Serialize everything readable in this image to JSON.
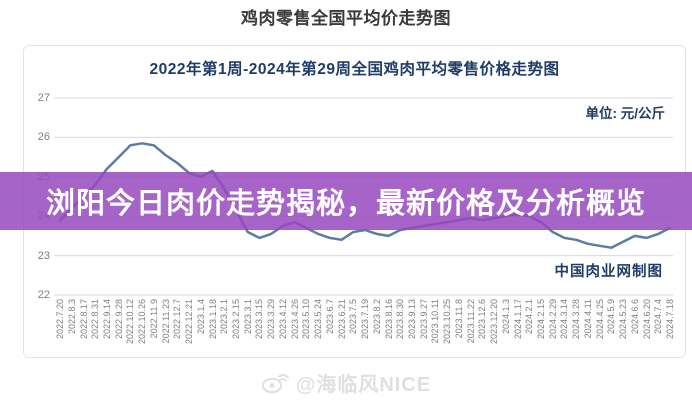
{
  "page": {
    "title": "鸡肉零售全国平均价走势图",
    "watermark": "@海临风NICE",
    "watermark_icon": "weibo-icon",
    "watermark_color": "#e0e0e0"
  },
  "overlay_banner": {
    "text": "浏阳今日肉价走势揭秘，最新价格及分析概览",
    "background_color": "#9648be",
    "text_color": "#ffffff"
  },
  "chart_card": {
    "title": "2022年第1周-2024年第29周全国鸡肉平均零售价格走势图",
    "unit_label": "单位: 元/公斤",
    "credit": "中国肉业网制图",
    "title_color": "#1e3d66"
  },
  "chart_data": {
    "type": "line",
    "title": "2022年第1周-2024年第29周全国鸡肉平均零售价格走势图",
    "ylabel": "元/公斤",
    "xlabel": "",
    "ylim": [
      22,
      27
    ],
    "yticks": [
      27,
      26,
      25,
      24,
      23,
      22
    ],
    "grid": true,
    "legend": "none",
    "line_color": "#5a7da4",
    "grid_color": "#d9d9d9",
    "tick_color": "#7e7e7e",
    "x": [
      "2022.7.20",
      "2022.8.3",
      "2022.8.17",
      "2022.8.31",
      "2022.9.14",
      "2022.9.28",
      "2022.10.12",
      "2022.10.26",
      "2022.11.9",
      "2022.11.23",
      "2022.12.7",
      "2022.12.21",
      "2023.1.4",
      "2023.1.18",
      "2023.2.1",
      "2023.2.15",
      "2023.3.1",
      "2023.3.15",
      "2023.3.29",
      "2023.4.12",
      "2023.4.26",
      "2023.5.10",
      "2023.5.24",
      "2023.6.7",
      "2023.6.21",
      "2023.7.5",
      "2023.7.19",
      "2023.8.2",
      "2023.8.16",
      "2023.8.30",
      "2023.9.13",
      "2023.9.27",
      "2023.10.11",
      "2023.10.25",
      "2023.11.8",
      "2023.11.22",
      "2023.12.6",
      "2023.12.20",
      "2024.1.3",
      "2024.1.17",
      "2024.2.1",
      "2024.2.15",
      "2024.2.29",
      "2024.3.14",
      "2024.3.28",
      "2024.4.11",
      "2024.4.25",
      "2024.5.9",
      "2024.5.23",
      "2024.6.6",
      "2024.6.20",
      "2024.7.4",
      "2024.7.18"
    ],
    "values": [
      23.9,
      24.2,
      24.5,
      24.8,
      25.2,
      25.5,
      25.8,
      25.85,
      25.8,
      25.55,
      25.35,
      25.1,
      25.0,
      25.15,
      24.7,
      24.15,
      23.6,
      23.45,
      23.55,
      23.75,
      23.85,
      23.7,
      23.55,
      23.45,
      23.4,
      23.6,
      23.65,
      23.55,
      23.5,
      23.65,
      23.7,
      23.75,
      23.8,
      23.85,
      23.9,
      23.95,
      23.9,
      23.95,
      24.0,
      24.05,
      24.0,
      23.85,
      23.6,
      23.45,
      23.4,
      23.3,
      23.25,
      23.2,
      23.35,
      23.5,
      23.45,
      23.55,
      23.7
    ]
  }
}
